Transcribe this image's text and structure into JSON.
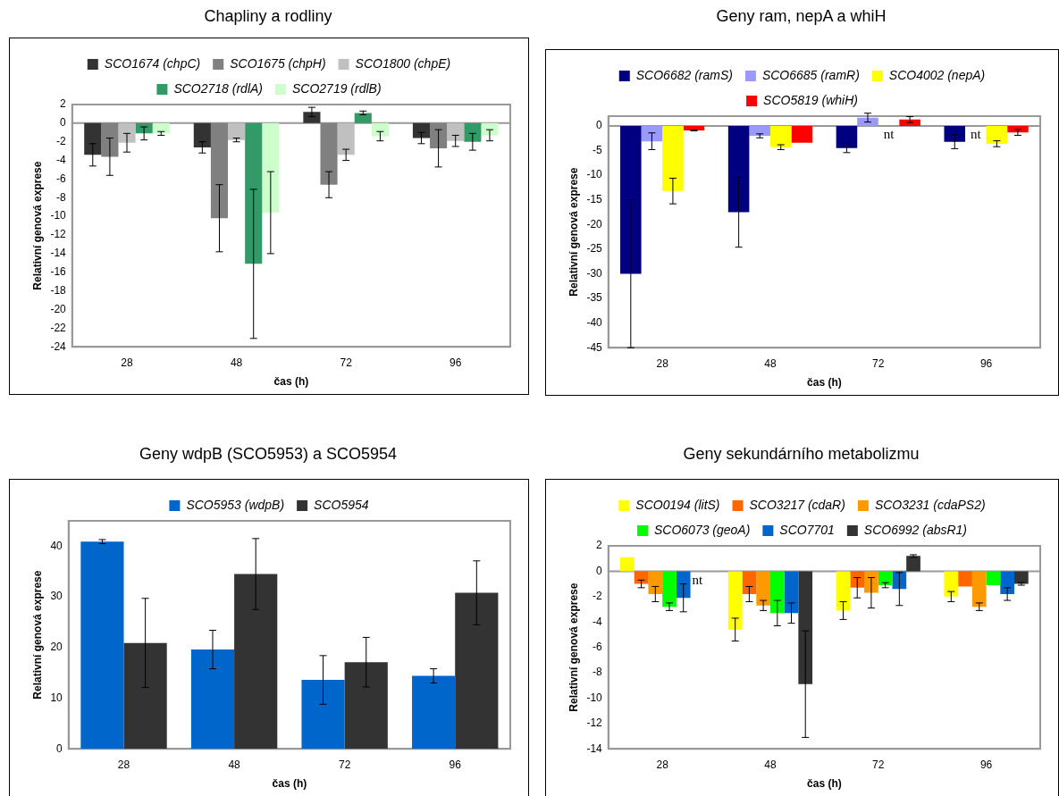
{
  "chart_data": [
    {
      "type": "bar",
      "title": "Chapliny a rodliny",
      "xlabel": "čas (h)",
      "ylabel": "Relativní genová exprese",
      "categories": [
        "28",
        "48",
        "72",
        "96"
      ],
      "ylim": [
        -24,
        2
      ],
      "yticks": [
        2,
        0,
        -2,
        -4,
        -6,
        -8,
        -10,
        -12,
        -14,
        -16,
        -18,
        -20,
        -22,
        -24
      ],
      "grid": false,
      "ref_lines": [
        {
          "axis": "y",
          "value": 0,
          "color": "#999999"
        }
      ],
      "legend": "top",
      "series": [
        {
          "name": "SCO1674 (chpC)",
          "color": "#333333",
          "values": [
            -3.4,
            -2.6,
            1.2,
            -1.6
          ],
          "errors": [
            1.2,
            0.6,
            0.5,
            0.6
          ]
        },
        {
          "name": "SCO1675 (chpH)",
          "color": "#808080",
          "values": [
            -3.6,
            -10.2,
            -6.6,
            -2.7
          ],
          "errors": [
            2.0,
            3.6,
            1.4,
            2.0
          ]
        },
        {
          "name": "SCO1800 (chpE)",
          "color": "#c0c0c0",
          "values": [
            -2.1,
            -1.8,
            -3.4,
            -1.9
          ],
          "errors": [
            1.0,
            0.2,
            0.6,
            0.6
          ]
        },
        {
          "name": "SCO2718 (rdlA)",
          "color": "#339966",
          "values": [
            -1.1,
            -15.1,
            1.1,
            -2.0
          ],
          "errors": [
            0.7,
            8.0,
            0.2,
            0.9
          ]
        },
        {
          "name": "SCO2719 (rdlB)",
          "color": "#ccffcc",
          "values": [
            -1.1,
            -9.6,
            -1.4,
            -1.3
          ],
          "errors": [
            0.2,
            4.4,
            0.5,
            0.6
          ]
        }
      ]
    },
    {
      "type": "bar",
      "title": "Geny ram, nepA a whiH",
      "xlabel": "čas (h)",
      "ylabel": "Relativní genová exprese",
      "categories": [
        "28",
        "48",
        "72",
        "96"
      ],
      "ylim": [
        -45,
        2
      ],
      "yticks": [
        0,
        -5,
        -10,
        -15,
        -20,
        -25,
        -30,
        -35,
        -40,
        -45
      ],
      "grid": false,
      "ref_lines": [
        {
          "axis": "y",
          "value": 0,
          "color": "#999999"
        }
      ],
      "legend": "top",
      "series": [
        {
          "name": "SCO6682 (ramS)",
          "color": "#000080",
          "values": [
            -30,
            -17.5,
            -4.5,
            -3.2
          ],
          "errors": [
            15,
            7.1,
            0.9,
            1.4
          ]
        },
        {
          "name": "SCO6685 (ramR)",
          "color": "#9999ff",
          "values": [
            -3.1,
            -2.0,
            1.7,
            null
          ],
          "errors": [
            1.7,
            0.4,
            0.9,
            null
          ],
          "value_labels": [
            null,
            null,
            null,
            "nt"
          ]
        },
        {
          "name": "SCO4002 (nepA)",
          "color": "#ffff00",
          "values": [
            -13.2,
            -4.3,
            null,
            -3.6
          ],
          "errors": [
            2.6,
            0.5,
            null,
            0.6
          ],
          "value_labels": [
            null,
            null,
            "nt",
            null
          ]
        },
        {
          "name": "SCO5819 (whiH)",
          "color": "#ff0000",
          "values": [
            -0.9,
            -3.4,
            1.3,
            -1.3
          ],
          "errors": [
            0.1,
            null,
            0.6,
            0.6
          ]
        }
      ]
    },
    {
      "type": "bar",
      "title": "Geny wdpB (SCO5953) a SCO5954",
      "xlabel": "čas (h)",
      "ylabel": "Relativní genová exprese",
      "categories": [
        "28",
        "48",
        "72",
        "96"
      ],
      "ylim": [
        0,
        45
      ],
      "yticks": [
        0,
        10,
        20,
        30,
        40
      ],
      "grid": false,
      "legend": "top",
      "series": [
        {
          "name": "SCO5953 (wdpB)",
          "color": "#0066cc",
          "values": [
            40.9,
            19.6,
            13.6,
            14.4
          ],
          "errors": [
            0.4,
            3.8,
            4.8,
            1.4
          ]
        },
        {
          "name": "SCO5954",
          "color": "#333333",
          "values": [
            20.9,
            34.5,
            17.1,
            30.8
          ],
          "errors": [
            8.8,
            7.0,
            4.9,
            6.3
          ]
        }
      ]
    },
    {
      "type": "bar",
      "title": "Geny sekundárního metabolizmu",
      "xlabel": "čas (h)",
      "ylabel": "Relativní genová exprese",
      "categories": [
        "28",
        "48",
        "72",
        "96"
      ],
      "ylim": [
        -14,
        2
      ],
      "yticks": [
        2,
        0,
        -2,
        -4,
        -6,
        -8,
        -10,
        -12,
        -14
      ],
      "grid": false,
      "ref_lines": [
        {
          "axis": "y",
          "value": 0,
          "color": "#999999"
        }
      ],
      "legend": "top",
      "series": [
        {
          "name": "SCO0194 (litS)",
          "color": "#ffff00",
          "values": [
            1.1,
            -4.6,
            -3.1,
            -2.0
          ],
          "errors": [
            null,
            0.9,
            0.7,
            0.4
          ]
        },
        {
          "name": "SCO3217 (cdaR)",
          "color": "#ff6600",
          "values": [
            -1.0,
            -1.8,
            -1.3,
            -1.2
          ],
          "errors": [
            0.3,
            0.6,
            0.8,
            null
          ]
        },
        {
          "name": "SCO3231 (cdaPS2)",
          "color": "#ff9900",
          "values": [
            -1.8,
            -2.7,
            -1.7,
            -2.8
          ],
          "errors": [
            0.6,
            0.4,
            1.2,
            0.3
          ]
        },
        {
          "name": "SCO6073 (geoA)",
          "color": "#00ff00",
          "values": [
            -2.8,
            -3.3,
            -1.1,
            -1.1
          ],
          "errors": [
            0.3,
            1.0,
            0.2,
            null
          ]
        },
        {
          "name": "SCO7701",
          "color": "#0066cc",
          "values": [
            -2.1,
            -3.3,
            -1.4,
            -1.8
          ],
          "errors": [
            1.1,
            0.8,
            1.3,
            0.5
          ]
        },
        {
          "name": "SCO6992 (absR1)",
          "color": "#333333",
          "values": [
            null,
            -8.9,
            1.2,
            -1.0
          ],
          "errors": [
            null,
            4.2,
            0.1,
            0.1
          ],
          "value_labels": [
            "nt",
            null,
            null,
            null
          ]
        }
      ]
    }
  ]
}
